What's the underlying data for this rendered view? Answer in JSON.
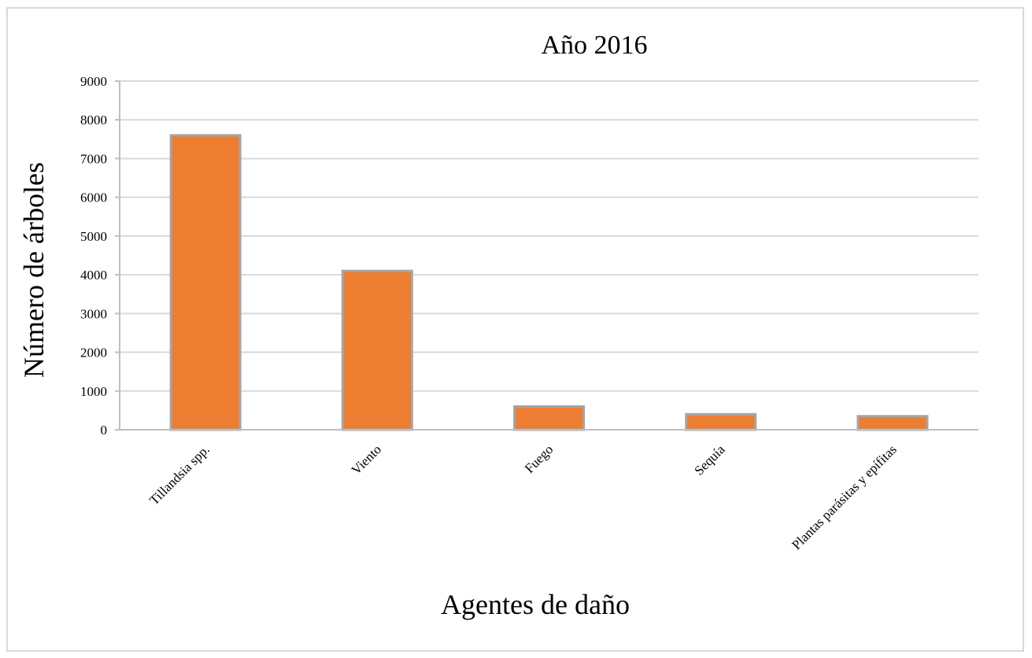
{
  "chart_data": {
    "type": "bar",
    "title": "Año 2016",
    "xlabel": "Agentes de daño",
    "ylabel": "Número de árboles",
    "categories": [
      "Tillandsia spp.",
      "Viento",
      "Fuego",
      "Sequía",
      "Plantas parásitas y epífitas"
    ],
    "values": [
      7600,
      4100,
      600,
      400,
      350
    ],
    "ylim": [
      0,
      9000
    ],
    "yticks": [
      "0",
      "1000",
      "2000",
      "3000",
      "4000",
      "5000",
      "6000",
      "7000",
      "8000",
      "9000"
    ],
    "grid": true,
    "legend": "none",
    "colors": {
      "bar": "#ed7d31",
      "bar_border": "#a5a5a5",
      "grid": "#d9d9d9"
    }
  }
}
